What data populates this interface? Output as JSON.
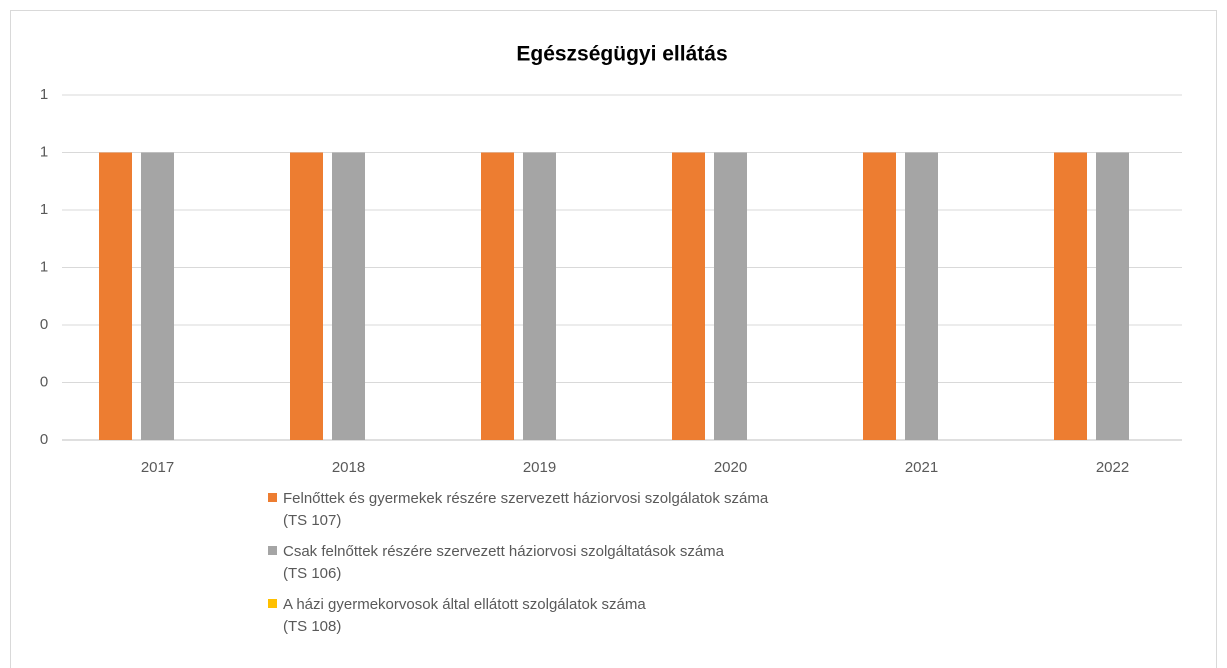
{
  "chart_data": {
    "type": "bar",
    "title": "Egészségügyi ellátás",
    "categories": [
      "2017",
      "2018",
      "2019",
      "2020",
      "2021",
      "2022"
    ],
    "series": [
      {
        "name": "Felnőttek és gyermekek részére szervezett háziorvosi szolgálatok száma\n(TS 107)",
        "color": "#ed7d31",
        "values": [
          1,
          1,
          1,
          1,
          1,
          1
        ]
      },
      {
        "name": "Csak felnőttek részére szervezett háziorvosi szolgáltatások száma\n(TS 106)",
        "color": "#a5a5a5",
        "values": [
          1,
          1,
          1,
          1,
          1,
          1
        ]
      },
      {
        "name": "A házi gyermekorvosok által ellátott szolgálatok száma\n(TS 108)",
        "color": "#ffc000",
        "values": [
          0,
          0,
          0,
          0,
          0,
          0
        ]
      }
    ],
    "ylim": [
      0,
      1.2
    ],
    "yticks": [
      0,
      {
        "value": 0.2,
        "label": "0"
      },
      {
        "value": 0.4,
        "label": "0"
      },
      {
        "value": 0.6,
        "label": "1"
      },
      {
        "value": 0.8,
        "label": "1"
      },
      1,
      {
        "value": 1.2,
        "label": "1"
      }
    ],
    "grid": true,
    "legend": "bottom"
  }
}
